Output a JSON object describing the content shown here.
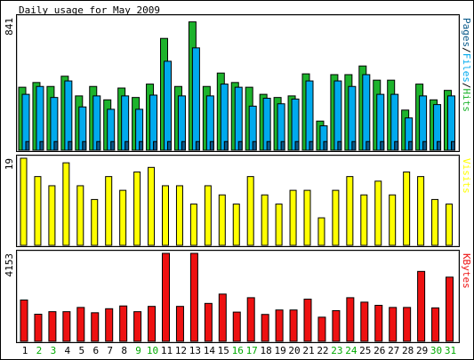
{
  "chart_data": {
    "type": "bar",
    "title": "Daily usage for May 2009",
    "categories": [
      "1",
      "2",
      "3",
      "4",
      "5",
      "6",
      "7",
      "8",
      "9",
      "10",
      "11",
      "12",
      "13",
      "14",
      "15",
      "16",
      "17",
      "18",
      "19",
      "20",
      "21",
      "22",
      "23",
      "24",
      "25",
      "26",
      "27",
      "28",
      "29",
      "30",
      "31"
    ],
    "weekend_days": [
      "2",
      "3",
      "9",
      "10",
      "16",
      "17",
      "23",
      "24",
      "30",
      "31"
    ],
    "colors": {
      "hits": "#1db32c",
      "files": "#00aaee",
      "pages": "#0a5a8a",
      "visits": "#ffff00",
      "kbytes": "#ee1111",
      "weekday_label": "#000000",
      "weekend_label": "#00aa00",
      "frame_fill": "#c8c8c8"
    },
    "panels": [
      {
        "id": "hits-panel",
        "max_label": "841",
        "ylim": [
          0,
          841
        ],
        "legend": [
          {
            "text": "Pages",
            "color": "#0a5a8a"
          },
          {
            "text": "/",
            "color": "#000000"
          },
          {
            "text": "Files",
            "color": "#00aaee"
          },
          {
            "text": "/",
            "color": "#000000"
          },
          {
            "text": "Hits",
            "color": "#1db32c"
          }
        ],
        "series": [
          {
            "name": "Hits",
            "color": "#1db32c",
            "values": [
              400,
              430,
              405,
              470,
              345,
              405,
              320,
              395,
              335,
              420,
              710,
              405,
              815,
              405,
              490,
              430,
              400,
              355,
              335,
              345,
              485,
              185,
              480,
              480,
              535,
              445,
              445,
              255,
              420,
              320,
              380
            ]
          },
          {
            "name": "Files",
            "color": "#00aaee",
            "values": [
              355,
              405,
              335,
              440,
              275,
              345,
              260,
              345,
              260,
              350,
              565,
              345,
              650,
              345,
              420,
              400,
              280,
              330,
              295,
              325,
              440,
              155,
              440,
              405,
              480,
              355,
              355,
              205,
              345,
              290,
              345
            ]
          },
          {
            "name": "Pages",
            "color": "#0a5a8a",
            "values": [
              55,
              55,
              55,
              55,
              55,
              55,
              55,
              55,
              55,
              55,
              55,
              55,
              55,
              55,
              55,
              55,
              55,
              55,
              55,
              55,
              55,
              55,
              55,
              55,
              55,
              55,
              55,
              55,
              55,
              55,
              55
            ]
          }
        ]
      },
      {
        "id": "visits-panel",
        "max_label": "19",
        "ylim": [
          0,
          19
        ],
        "legend": [
          {
            "text": "Visits",
            "color": "#ffff00"
          }
        ],
        "series": [
          {
            "name": "Visits",
            "color": "#ffff00",
            "values": [
              19,
              15,
              13,
              18,
              13,
              10,
              15,
              12,
              16,
              17,
              13,
              13,
              9,
              13,
              11,
              9,
              15,
              11,
              9,
              12,
              12,
              6,
              12,
              15,
              11,
              14,
              11,
              16,
              15,
              10,
              9
            ]
          }
        ]
      },
      {
        "id": "kbytes-panel",
        "max_label": "4153",
        "ylim": [
          0,
          4153
        ],
        "legend": [
          {
            "text": "KBytes",
            "color": "#ee1111"
          }
        ],
        "series": [
          {
            "name": "KBytes",
            "color": "#ee1111",
            "values": [
              1950,
              1280,
              1400,
              1400,
              1600,
              1350,
              1540,
              1670,
              1400,
              1650,
              4153,
              1650,
              4153,
              1790,
              2230,
              1380,
              2060,
              1270,
              1480,
              1480,
              1990,
              1140,
              1450,
              2060,
              1850,
              1700,
              1600,
              1600,
              3300,
              1580,
              3030
            ]
          }
        ]
      }
    ]
  }
}
